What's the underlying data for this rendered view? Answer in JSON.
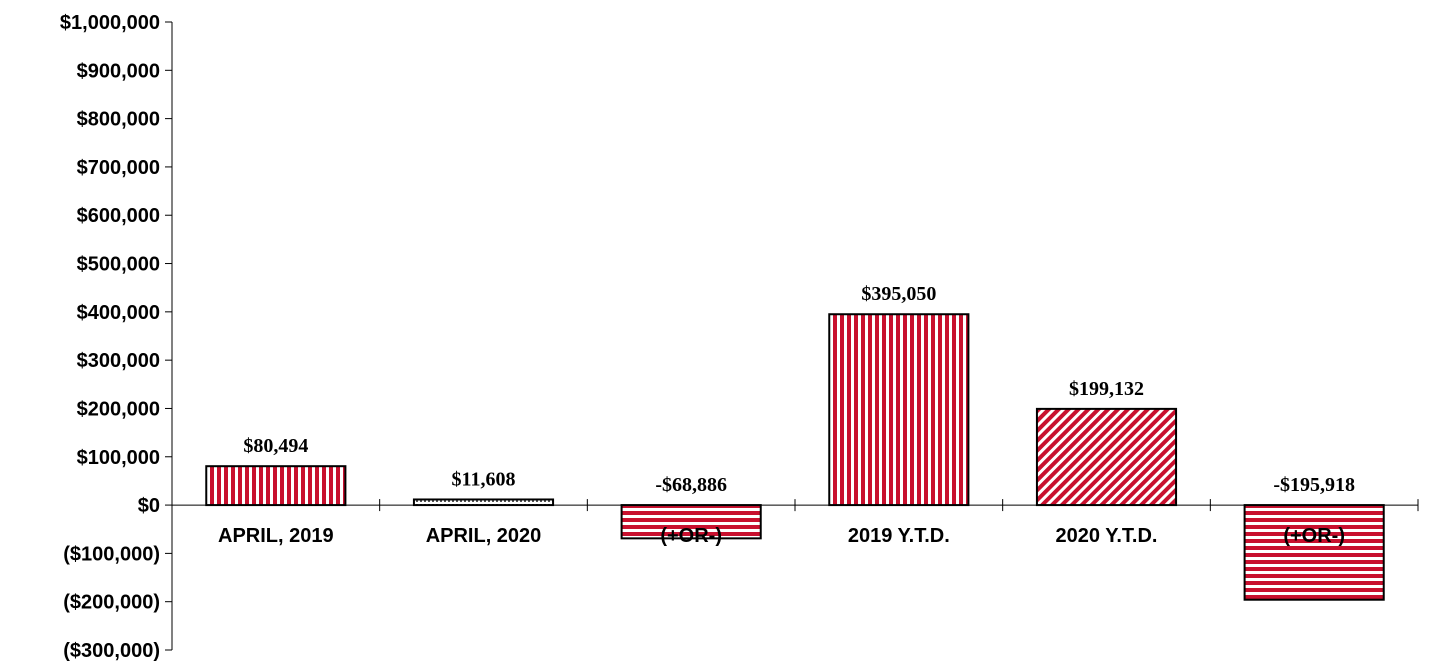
{
  "chart_data": {
    "type": "bar",
    "categories": [
      "APRIL, 2019",
      "APRIL, 2020",
      "(+OR-)",
      "2019 Y.T.D.",
      "2020 Y.T.D.",
      "(+OR-)"
    ],
    "values": [
      80494,
      11608,
      -68886,
      395050,
      199132,
      -195918
    ],
    "data_labels": [
      "$80,494",
      "$11,608",
      "-$68,886",
      "$395,050",
      "$199,132",
      "-$195,918"
    ],
    "y_ticks": [
      {
        "value": 1000000,
        "label": "$1,000,000"
      },
      {
        "value": 900000,
        "label": "$900,000"
      },
      {
        "value": 800000,
        "label": "$800,000"
      },
      {
        "value": 700000,
        "label": "$700,000"
      },
      {
        "value": 600000,
        "label": "$600,000"
      },
      {
        "value": 500000,
        "label": "$500,000"
      },
      {
        "value": 400000,
        "label": "$400,000"
      },
      {
        "value": 300000,
        "label": "$300,000"
      },
      {
        "value": 200000,
        "label": "$200,000"
      },
      {
        "value": 100000,
        "label": "$100,000"
      },
      {
        "value": 0,
        "label": "$0"
      },
      {
        "value": -100000,
        "label": "($100,000)"
      },
      {
        "value": -200000,
        "label": "($200,000)"
      },
      {
        "value": -300000,
        "label": "($300,000)"
      }
    ],
    "ylim": [
      -300000,
      1000000
    ],
    "title": "",
    "xlabel": "",
    "ylabel": "",
    "grid": false,
    "bar_patterns": [
      "vertical-stripes",
      "dotted-horizontal",
      "horizontal-stripes",
      "vertical-stripes",
      "diagonal-hatch",
      "horizontal-stripes"
    ],
    "colors": {
      "bar_red": "#c8102e",
      "stroke": "#000000"
    }
  }
}
